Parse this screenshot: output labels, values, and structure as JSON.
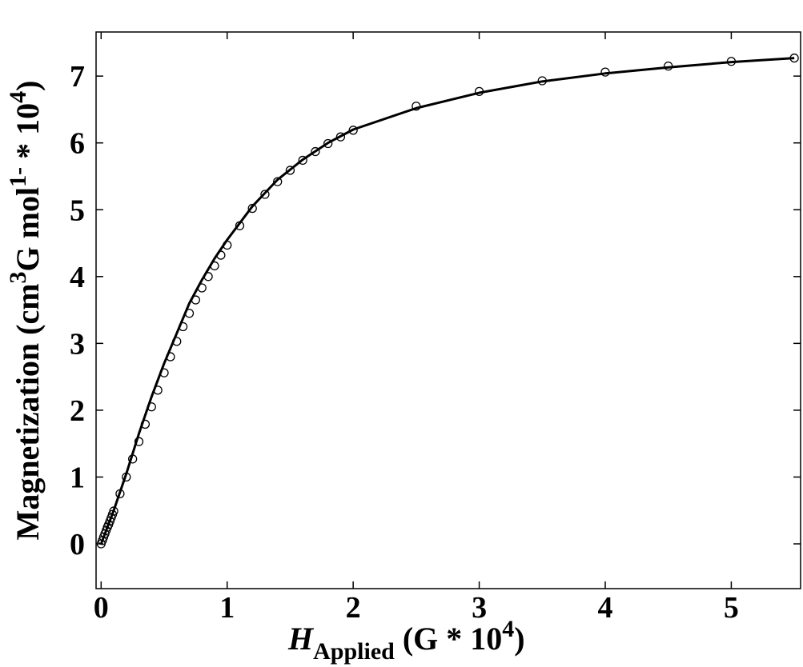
{
  "chart_data": {
    "type": "scatter",
    "xlabel": {
      "parts": [
        "H",
        "Applied",
        " (G * 10",
        "4",
        ")"
      ]
    },
    "ylabel": {
      "parts": [
        "Magnetization (cm",
        "3",
        "G mol",
        "1-",
        " * 10",
        "4",
        ")"
      ]
    },
    "xlim": [
      -0.04,
      5.55
    ],
    "ylim": [
      -0.67,
      7.66
    ],
    "xticks": [
      0,
      1,
      2,
      3,
      4,
      5
    ],
    "yticks": [
      0,
      1,
      2,
      3,
      4,
      5,
      6,
      7
    ],
    "series": [
      {
        "type": "scatter",
        "color": "#000000",
        "x": [
          0,
          0.01,
          0.02,
          0.03,
          0.04,
          0.05,
          0.06,
          0.07,
          0.08,
          0.09,
          0.1,
          0.15,
          0.2,
          0.25,
          0.3,
          0.35,
          0.4,
          0.45,
          0.5,
          0.55,
          0.6,
          0.65,
          0.7,
          0.75,
          0.8,
          0.85,
          0.9,
          0.95,
          1.0,
          1.1,
          1.2,
          1.3,
          1.4,
          1.5,
          1.6,
          1.7,
          1.8,
          1.9,
          2.0,
          2.5,
          3,
          3.5,
          4,
          4.5,
          5,
          5.5
        ],
        "values": [
          0,
          0.05,
          0.1,
          0.15,
          0.2,
          0.25,
          0.29,
          0.34,
          0.39,
          0.44,
          0.49,
          0.75,
          1.0,
          1.27,
          1.53,
          1.79,
          2.05,
          2.3,
          2.56,
          2.8,
          3.03,
          3.25,
          3.45,
          3.65,
          3.83,
          4.0,
          4.16,
          4.32,
          4.47,
          4.76,
          5.02,
          5.23,
          5.42,
          5.59,
          5.74,
          5.87,
          5.99,
          6.09,
          6.19,
          6.55,
          6.77,
          6.93,
          7.06,
          7.15,
          7.22,
          7.27
        ]
      },
      {
        "type": "line",
        "color": "#000000",
        "x": [
          0,
          0.1,
          0.2,
          0.3,
          0.4,
          0.5,
          0.6,
          0.7,
          0.8,
          0.9,
          1.0,
          1.2,
          1.4,
          1.6,
          1.8,
          2.0,
          2.5,
          3,
          3.5,
          4,
          4.5,
          5,
          5.5
        ],
        "values": [
          0,
          0.5,
          1.05,
          1.65,
          2.2,
          2.7,
          3.15,
          3.6,
          3.95,
          4.27,
          4.55,
          5.05,
          5.45,
          5.75,
          6.0,
          6.2,
          6.52,
          6.75,
          6.92,
          7.04,
          7.13,
          7.21,
          7.27
        ]
      }
    ]
  }
}
